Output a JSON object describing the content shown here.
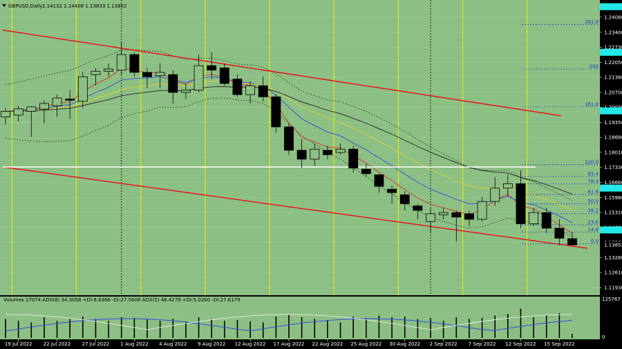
{
  "header": {
    "symbol_label": "GBPUSD,Daily",
    "ohlc_label": "1.14132 1.14408 1.13833 1.13852"
  },
  "indicator": {
    "label": "Volumes 17074 ADX(8) 34.3058 +DI:8.8366 -DI:27.5608 ADX(5) 48.4279 +DI:5.0260 -DI:27.6179",
    "max_label": "125767",
    "zero_label": "0"
  },
  "colors": {
    "background": "#8cbf83",
    "bull": "#8cbf83",
    "bear": "#000000",
    "channel": "#e8141c",
    "level": "#ffffff",
    "vline": "#f0f000",
    "fibo": "#1a3bd6",
    "price_tag": "#22e8e8",
    "ema_red": "#d8342a",
    "ema_blue": "#2c4ee0",
    "ema_yellow": "#dcd230",
    "ema_black": "#222222"
  },
  "chart_data": {
    "type": "candlestick",
    "price_range": [
      1.1159,
      1.2485
    ],
    "y_ticks": [
      "1.24080",
      "1.23400",
      "1.22730",
      "1.22050",
      "1.21380",
      "1.20700",
      "1.20030",
      "1.19350",
      "1.18680",
      "1.18010",
      "1.17330",
      "1.16660",
      "1.15980",
      "1.15310",
      "1.14630",
      "1.13960",
      "1.13280",
      "1.12610",
      "1.11930"
    ],
    "x_labels": [
      "19 Jul 2022",
      "22 Jul 2022",
      "27 Jul 2022",
      "1 Aug 2022",
      "4 Aug 2022",
      "9 Aug 2022",
      "12 Aug 2022",
      "17 Aug 2022",
      "22 Aug 2022",
      "25 Aug 2022",
      "30 Aug 2022",
      "2 Sep 2022",
      "7 Sep 2022",
      "12 Sep 2022",
      "15 Sep 2022"
    ],
    "candles": [
      {
        "o": 1.196,
        "h": 1.2,
        "l": 1.1925,
        "c": 1.1985
      },
      {
        "o": 1.1968,
        "h": 1.201,
        "l": 1.194,
        "c": 1.1996
      },
      {
        "o": 1.1985,
        "h": 1.2008,
        "l": 1.187,
        "c": 1.2005
      },
      {
        "o": 1.1995,
        "h": 1.2035,
        "l": 1.193,
        "c": 1.202
      },
      {
        "o": 1.201,
        "h": 1.206,
        "l": 1.196,
        "c": 1.2045
      },
      {
        "o": 1.204,
        "h": 1.208,
        "l": 1.195,
        "c": 1.2035
      },
      {
        "o": 1.203,
        "h": 1.216,
        "l": 1.2,
        "c": 1.214
      },
      {
        "o": 1.215,
        "h": 1.218,
        "l": 1.21,
        "c": 1.2165
      },
      {
        "o": 1.2165,
        "h": 1.22,
        "l": 1.214,
        "c": 1.2175
      },
      {
        "o": 1.217,
        "h": 1.2295,
        "l": 1.215,
        "c": 1.224
      },
      {
        "o": 1.224,
        "h": 1.225,
        "l": 1.214,
        "c": 1.216
      },
      {
        "o": 1.216,
        "h": 1.218,
        "l": 1.209,
        "c": 1.214
      },
      {
        "o": 1.2145,
        "h": 1.22,
        "l": 1.209,
        "c": 1.216
      },
      {
        "o": 1.215,
        "h": 1.217,
        "l": 1.202,
        "c": 1.207
      },
      {
        "o": 1.207,
        "h": 1.211,
        "l": 1.204,
        "c": 1.208
      },
      {
        "o": 1.208,
        "h": 1.224,
        "l": 1.207,
        "c": 1.219
      },
      {
        "o": 1.219,
        "h": 1.225,
        "l": 1.213,
        "c": 1.217
      },
      {
        "o": 1.218,
        "h": 1.22,
        "l": 1.21,
        "c": 1.211
      },
      {
        "o": 1.213,
        "h": 1.215,
        "l": 1.205,
        "c": 1.206
      },
      {
        "o": 1.206,
        "h": 1.212,
        "l": 1.202,
        "c": 1.21
      },
      {
        "o": 1.21,
        "h": 1.214,
        "l": 1.203,
        "c": 1.205
      },
      {
        "o": 1.205,
        "h": 1.206,
        "l": 1.189,
        "c": 1.1915
      },
      {
        "o": 1.1915,
        "h": 1.193,
        "l": 1.179,
        "c": 1.181
      },
      {
        "o": 1.181,
        "h": 1.186,
        "l": 1.173,
        "c": 1.177
      },
      {
        "o": 1.177,
        "h": 1.184,
        "l": 1.174,
        "c": 1.1815
      },
      {
        "o": 1.181,
        "h": 1.183,
        "l": 1.177,
        "c": 1.179
      },
      {
        "o": 1.18,
        "h": 1.184,
        "l": 1.179,
        "c": 1.1815
      },
      {
        "o": 1.1815,
        "h": 1.183,
        "l": 1.171,
        "c": 1.173
      },
      {
        "o": 1.1725,
        "h": 1.175,
        "l": 1.169,
        "c": 1.1705
      },
      {
        "o": 1.17,
        "h": 1.1705,
        "l": 1.162,
        "c": 1.1648
      },
      {
        "o": 1.1635,
        "h": 1.165,
        "l": 1.157,
        "c": 1.162
      },
      {
        "o": 1.161,
        "h": 1.1625,
        "l": 1.154,
        "c": 1.157
      },
      {
        "o": 1.156,
        "h": 1.157,
        "l": 1.15,
        "c": 1.154
      },
      {
        "o": 1.149,
        "h": 1.155,
        "l": 1.144,
        "c": 1.1525
      },
      {
        "o": 1.152,
        "h": 1.155,
        "l": 1.15,
        "c": 1.153
      },
      {
        "o": 1.153,
        "h": 1.154,
        "l": 1.14,
        "c": 1.151
      },
      {
        "o": 1.1525,
        "h": 1.154,
        "l": 1.147,
        "c": 1.15
      },
      {
        "o": 1.15,
        "h": 1.16,
        "l": 1.149,
        "c": 1.158
      },
      {
        "o": 1.158,
        "h": 1.169,
        "l": 1.156,
        "c": 1.164
      },
      {
        "o": 1.164,
        "h": 1.17,
        "l": 1.16,
        "c": 1.166
      },
      {
        "o": 1.166,
        "h": 1.172,
        "l": 1.146,
        "c": 1.148
      },
      {
        "o": 1.148,
        "h": 1.155,
        "l": 1.147,
        "c": 1.153
      },
      {
        "o": 1.153,
        "h": 1.155,
        "l": 1.144,
        "c": 1.146
      },
      {
        "o": 1.146,
        "h": 1.15,
        "l": 1.1385,
        "c": 1.1415
      },
      {
        "o": 1.1413,
        "h": 1.1441,
        "l": 1.1383,
        "c": 1.1385
      }
    ],
    "volumes": [
      0.55,
      0.5,
      0.45,
      0.6,
      0.5,
      0.55,
      0.62,
      0.55,
      0.5,
      0.6,
      0.58,
      0.55,
      0.5,
      0.56,
      0.48,
      0.6,
      0.55,
      0.5,
      0.52,
      0.48,
      0.45,
      0.62,
      0.68,
      0.6,
      0.55,
      0.5,
      0.45,
      0.62,
      0.58,
      0.65,
      0.6,
      0.62,
      0.55,
      0.58,
      0.5,
      0.6,
      0.55,
      0.58,
      0.65,
      0.7,
      0.85,
      0.6,
      0.65,
      0.72,
      0.12
    ],
    "channel_upper": [
      1.235,
      1.1965
    ],
    "channel_lower": [
      1.1735,
      1.137
    ],
    "horizontal_level": 1.1735,
    "fibo_levels": [
      {
        "label": "261.8",
        "price": 1.2375
      },
      {
        "label": "200",
        "price": 1.2175
      },
      {
        "label": "161.8",
        "price": 1.2005
      },
      {
        "label": "100.0",
        "price": 1.1745
      },
      {
        "label": "85.4",
        "price": 1.1692
      },
      {
        "label": "76.4",
        "price": 1.166
      },
      {
        "label": "61.8",
        "price": 1.1611
      },
      {
        "label": "50.0",
        "price": 1.157
      },
      {
        "label": "38.2",
        "price": 1.1527
      },
      {
        "label": "23.6",
        "price": 1.1475
      },
      {
        "label": "14.6",
        "price": 1.1443
      },
      {
        "label": "0.0",
        "price": 1.139
      }
    ],
    "price_tags": [
      1.2455,
      1.225,
      1.1987,
      1.164,
      1.1452,
      1.1385
    ]
  }
}
